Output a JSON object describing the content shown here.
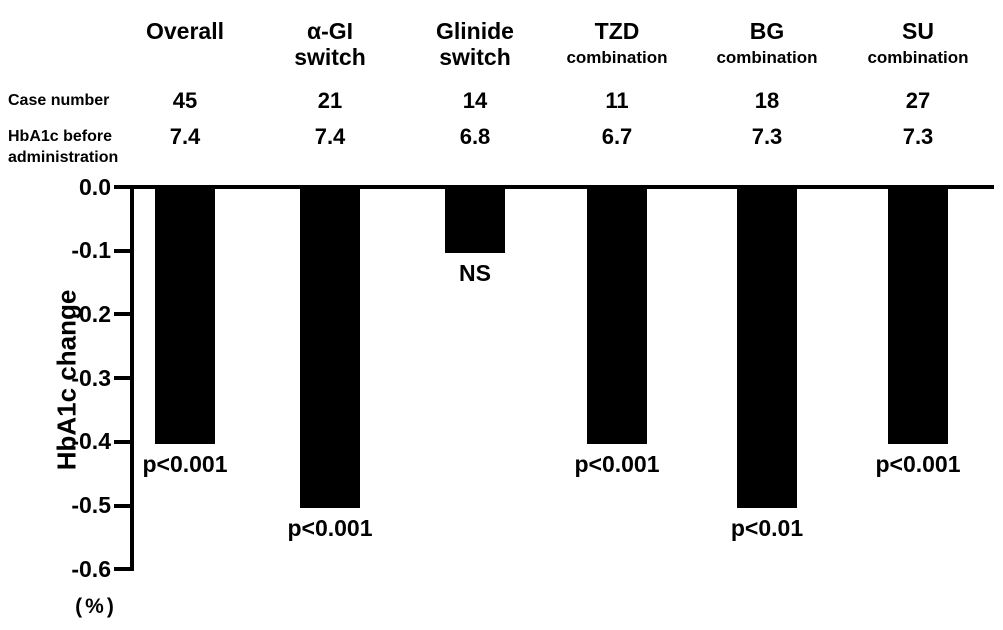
{
  "chart_data": {
    "type": "bar",
    "title": "",
    "ylabel": "HbA1c change",
    "unit_label": "(%)",
    "ylim": [
      -0.6,
      0.0
    ],
    "ytick_labels": [
      "0.0",
      "-0.1",
      "-0.2",
      "-0.3",
      "-0.4",
      "-0.5",
      "-0.6"
    ],
    "grid": false,
    "legend": false,
    "bar_color": "#000000",
    "background_color": "#ffffff",
    "categories": [
      "Overall",
      "α-GI switch",
      "Glinide switch",
      "TZD combination",
      "BG combination",
      "SU combination"
    ],
    "values": [
      -0.4,
      -0.5,
      -0.1,
      -0.4,
      -0.5,
      -0.4
    ],
    "p_labels": [
      "p<0.001",
      "p<0.001",
      "NS",
      "p<0.001",
      "p<0.01",
      "p<0.001"
    ],
    "case_numbers": [
      45,
      21,
      14,
      11,
      18,
      27
    ],
    "hba1c_before": [
      7.4,
      7.4,
      6.8,
      6.7,
      7.3,
      7.3
    ]
  },
  "column_headers": [
    {
      "line1": "Overall",
      "line2": ""
    },
    {
      "line1": "α-GI",
      "line2": "switch"
    },
    {
      "line1": "Glinide",
      "line2": "switch"
    },
    {
      "line1": "TZD",
      "line2": "combination"
    },
    {
      "line1": "BG",
      "line2": "combination"
    },
    {
      "line1": "SU",
      "line2": "combination"
    }
  ],
  "row_labels": {
    "case_number": "Case number",
    "hba1c_before_line1": "HbA1c before",
    "hba1c_before_line2": "administration"
  }
}
